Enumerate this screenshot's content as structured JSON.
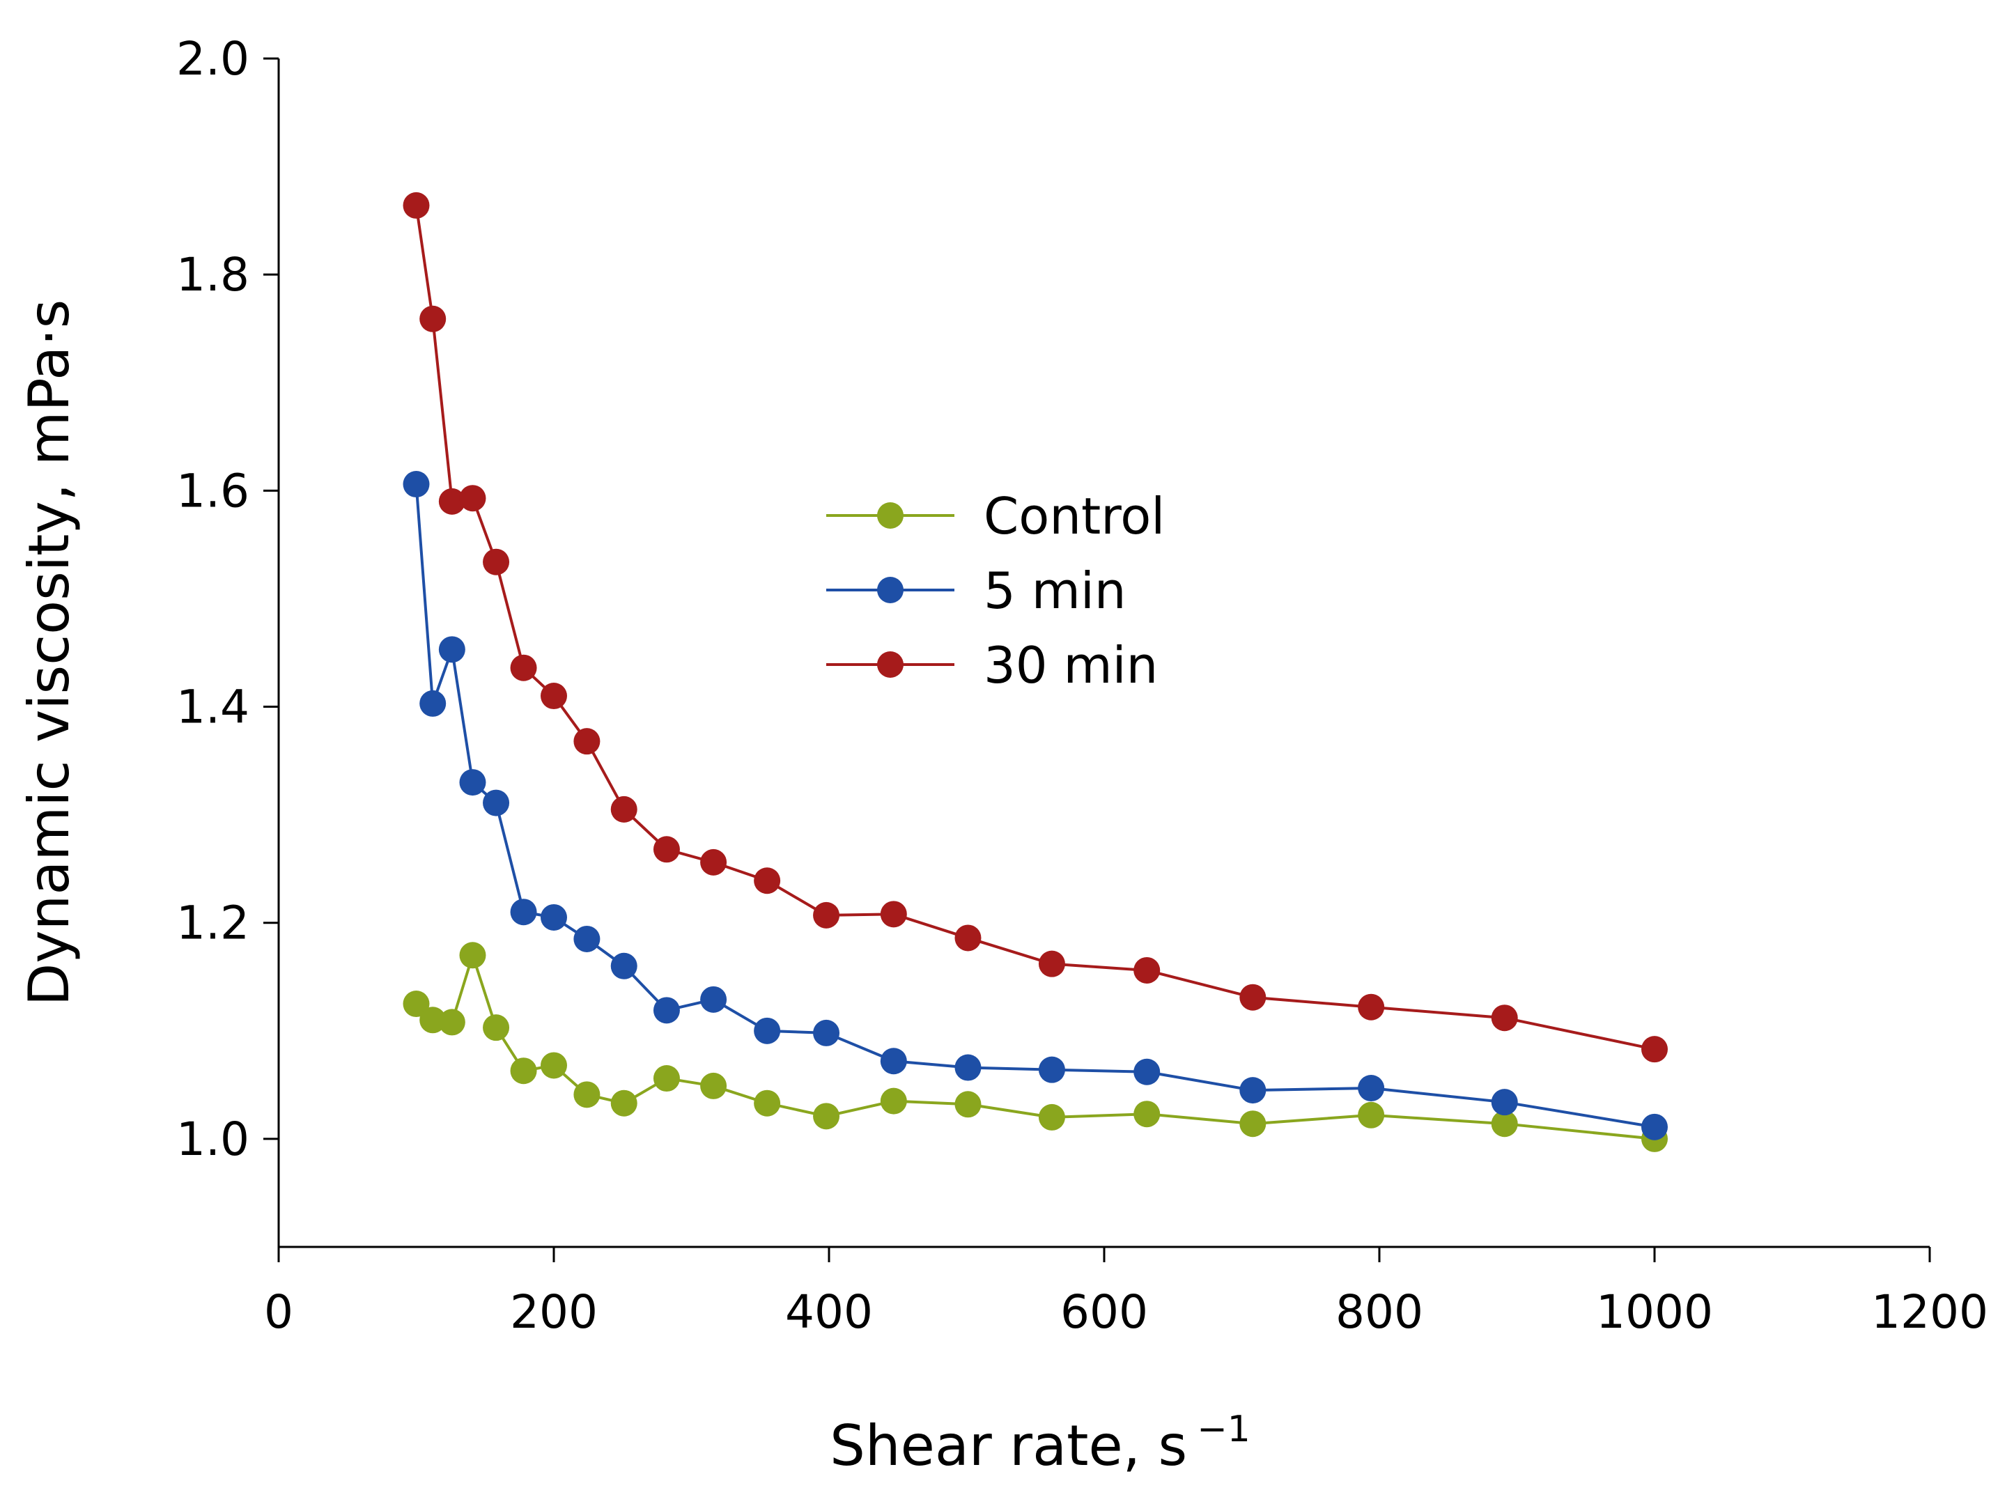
{
  "chart_data": {
    "type": "line",
    "title": "",
    "xlabel": "Shear rate, s",
    "xlabel_superscript": "−1",
    "ylabel": "Dynamic viscosity, mPa·s",
    "xlim": [
      0,
      1200
    ],
    "ylim": [
      0.9,
      2.0
    ],
    "x_ticks": [
      0,
      200,
      400,
      600,
      800,
      1000,
      1200
    ],
    "x_tick_labels": [
      "0",
      "200",
      "400",
      "600",
      "800",
      "1000",
      "1200"
    ],
    "y_ticks": [
      1.0,
      1.2,
      1.4,
      1.6,
      1.8,
      2.0
    ],
    "y_tick_labels": [
      "1.0",
      "1.2",
      "1.4",
      "1.6",
      "1.8",
      "2.0"
    ],
    "grid": false,
    "legend_position": "center",
    "x": [
      100,
      112,
      126,
      141,
      158,
      178,
      200,
      224,
      251,
      282,
      316,
      355,
      398,
      447,
      501,
      562,
      631,
      708,
      794,
      891,
      1000
    ],
    "series": [
      {
        "name": "Control",
        "color": "#8aa61e",
        "values": [
          1.125,
          1.11,
          1.108,
          1.17,
          1.103,
          1.063,
          1.068,
          1.041,
          1.033,
          1.056,
          1.049,
          1.033,
          1.021,
          1.035,
          1.032,
          1.02,
          1.023,
          1.014,
          1.022,
          1.014,
          1.0
        ]
      },
      {
        "name": "5 min",
        "color": "#1e4fa6",
        "values": [
          1.606,
          1.403,
          1.453,
          1.33,
          1.311,
          1.21,
          1.205,
          1.185,
          1.16,
          1.119,
          1.129,
          1.1,
          1.098,
          1.072,
          1.066,
          1.064,
          1.062,
          1.045,
          1.047,
          1.034,
          1.011
        ]
      },
      {
        "name": "30 min",
        "color": "#a61b1b",
        "values": [
          1.864,
          1.759,
          1.59,
          1.593,
          1.534,
          1.436,
          1.41,
          1.368,
          1.305,
          1.268,
          1.256,
          1.239,
          1.207,
          1.208,
          1.186,
          1.162,
          1.156,
          1.131,
          1.122,
          1.112,
          1.083
        ]
      }
    ]
  }
}
